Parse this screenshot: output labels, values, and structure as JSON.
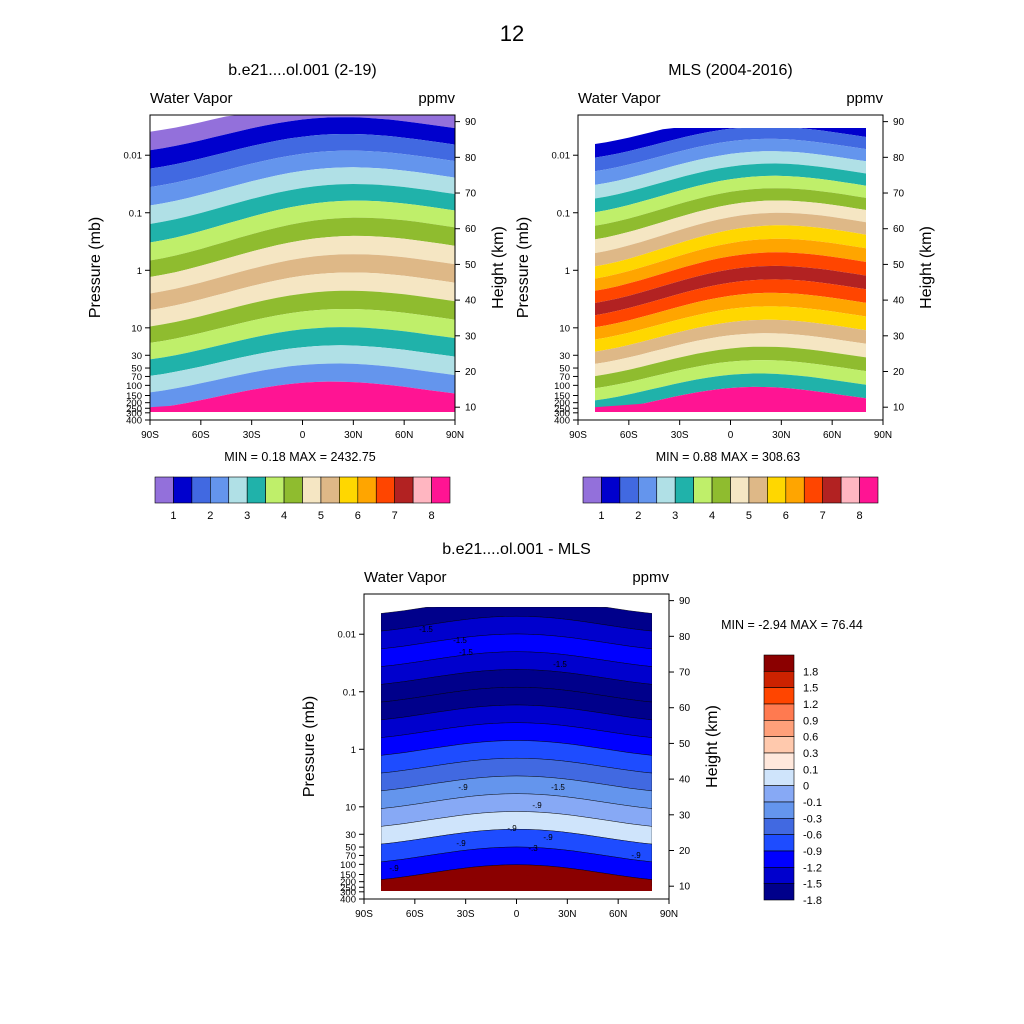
{
  "page_title": "12",
  "colors": {
    "wv_scale": [
      "#9370db",
      "#0000cd",
      "#4169e1",
      "#6495ed",
      "#b0e0e6",
      "#20b2aa",
      "#bfef6a",
      "#8fbc2f",
      "#f5e6c3",
      "#deb887",
      "#ffd700",
      "#ffa500",
      "#ff4500",
      "#b22222",
      "#ffb6c1",
      "#ff1493"
    ],
    "diff_scale": [
      "#00008b",
      "#0000cd",
      "#0000ff",
      "#1e4cff",
      "#4169e1",
      "#6495ed",
      "#87a9f5",
      "#cfe4fb",
      "#ffe8dc",
      "#ffc9ad",
      "#ffa07a",
      "#ff7a50",
      "#ff4500",
      "#cc2200",
      "#8b0000"
    ]
  },
  "chart_data": [
    {
      "type": "heatmap",
      "id": "model",
      "title": "b.e21....ol.001 (2-19)",
      "left_label": "Water Vapor",
      "right_label": "ppmv",
      "ylabel": "Pressure (mb)",
      "ylabel_right": "Height (km)",
      "x_ticks": [
        "90S",
        "60S",
        "30S",
        "0",
        "30N",
        "60N",
        "90N"
      ],
      "x_range": [
        -90,
        90
      ],
      "pressure_ticks": [
        "0.01",
        "0.1",
        "1",
        "10",
        "30",
        "50",
        "70",
        "100",
        "150",
        "200",
        "250",
        "300",
        "400"
      ],
      "pressure_values": [
        0.01,
        0.1,
        1,
        10,
        30,
        50,
        70,
        100,
        150,
        200,
        250,
        300,
        400
      ],
      "pressure_range": [
        0.002,
        400
      ],
      "height_ticks": [
        10,
        20,
        30,
        40,
        50,
        60,
        70,
        80,
        90
      ],
      "stats": "MIN =   0.18  MAX = 2432.75",
      "colorbar_labels": [
        "1",
        "2",
        "3",
        "4",
        "5",
        "6",
        "7",
        "8"
      ]
    },
    {
      "type": "heatmap",
      "id": "obs",
      "title": "MLS (2004-2016)",
      "left_label": "Water Vapor",
      "right_label": "ppmv",
      "ylabel": "Pressure (mb)",
      "ylabel_right": "Height (km)",
      "x_ticks": [
        "90S",
        "60S",
        "30S",
        "0",
        "30N",
        "60N",
        "90N"
      ],
      "x_range": [
        -90,
        90
      ],
      "pressure_ticks": [
        "0.01",
        "0.1",
        "1",
        "10",
        "30",
        "50",
        "70",
        "100",
        "150",
        "200",
        "250",
        "300",
        "400"
      ],
      "pressure_values": [
        0.01,
        0.1,
        1,
        10,
        30,
        50,
        70,
        100,
        150,
        200,
        250,
        300,
        400
      ],
      "pressure_range": [
        0.002,
        400
      ],
      "height_ticks": [
        10,
        20,
        30,
        40,
        50,
        60,
        70,
        80,
        90
      ],
      "stats": "MIN =   0.88  MAX = 308.63",
      "colorbar_labels": [
        "1",
        "2",
        "3",
        "4",
        "5",
        "6",
        "7",
        "8"
      ]
    },
    {
      "type": "heatmap",
      "id": "diff",
      "title": "b.e21....ol.001 - MLS",
      "left_label": "Water Vapor",
      "right_label": "ppmv",
      "ylabel": "Pressure (mb)",
      "ylabel_right": "Height (km)",
      "x_ticks": [
        "90S",
        "60S",
        "30S",
        "0",
        "30N",
        "60N",
        "90N"
      ],
      "x_range": [
        -90,
        90
      ],
      "pressure_ticks": [
        "0.01",
        "0.1",
        "1",
        "10",
        "30",
        "50",
        "70",
        "100",
        "150",
        "200",
        "250",
        "300",
        "400"
      ],
      "pressure_values": [
        0.01,
        0.1,
        1,
        10,
        30,
        50,
        70,
        100,
        150,
        200,
        250,
        300,
        400
      ],
      "pressure_range": [
        0.002,
        400
      ],
      "height_ticks": [
        10,
        20,
        30,
        40,
        50,
        60,
        70,
        80,
        90
      ],
      "stats": "MIN =  -2.94  MAX =  76.44",
      "colorbar_labels": [
        "1.8",
        "1.5",
        "1.2",
        "0.9",
        "0.6",
        "0.3",
        "0.1",
        "0",
        "-0.1",
        "-0.3",
        "-0.6",
        "-0.9",
        "-1.2",
        "-1.5",
        "-1.8"
      ],
      "contour_labels": [
        "-1.5",
        "-1.5",
        "-1.5",
        "-.9",
        "-1.5",
        "-1.5",
        "-.9",
        "-.9",
        "-.9",
        "-.3",
        "-.9",
        "-.9",
        "-.9"
      ]
    }
  ]
}
